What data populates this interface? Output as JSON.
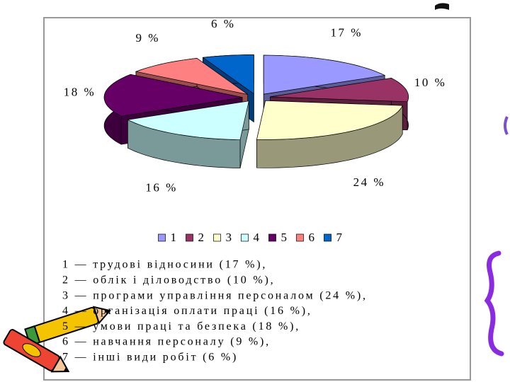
{
  "chart_data": {
    "type": "pie",
    "categories": [
      "1",
      "2",
      "3",
      "4",
      "5",
      "6",
      "7"
    ],
    "values": [
      17,
      10,
      24,
      16,
      18,
      9,
      6
    ],
    "value_labels": [
      "17 %",
      "10 %",
      "24 %",
      "16 %",
      "18 %",
      "9 %",
      "6 %"
    ],
    "colors": [
      "#9999ff",
      "#993366",
      "#ffffcc",
      "#ccffff",
      "#660066",
      "#ff8080",
      "#0066cc"
    ],
    "legend": "bottom",
    "three_d": true,
    "exploded": true
  },
  "description_lines": [
    "1 — трудові відносини (17 %),",
    "2 — облік і діловодство (10 %),",
    "3 — програми управління персоналом (24 %),",
    "4 — організація оплати праці (16 %),",
    "5 — умови праці та безпека (18 %),",
    "6 — навчання персоналу (9 %),",
    "7 — інші види робіт (6 %)"
  ]
}
